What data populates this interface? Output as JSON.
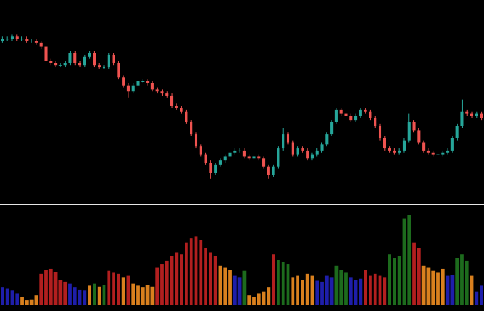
{
  "chart_data": [
    {
      "type": "candlestick",
      "up_color": "#26a69a",
      "down_color": "#ef5350",
      "ylim": [
        0,
        100
      ],
      "open": [
        80,
        81,
        81,
        82,
        81,
        81,
        80,
        80,
        79,
        77,
        70,
        69,
        68,
        68,
        69,
        74,
        69,
        68,
        72,
        74,
        68,
        67,
        67,
        73,
        69,
        62,
        58,
        55,
        58,
        60,
        60,
        59,
        56,
        55,
        54,
        53,
        48,
        47,
        45,
        40,
        34,
        28,
        24,
        20,
        15,
        19,
        21,
        23,
        25,
        26,
        26,
        23,
        22,
        23,
        22,
        18,
        14,
        18,
        27,
        34,
        30,
        24,
        27,
        26,
        22,
        24,
        26,
        29,
        34,
        40,
        46,
        44,
        43,
        41,
        43,
        46,
        45,
        42,
        38,
        32,
        27,
        26,
        25,
        26,
        31,
        40,
        36,
        30,
        26,
        25,
        24,
        24,
        25,
        26,
        32,
        38,
        45,
        44,
        43,
        44
      ],
      "high": [
        82,
        82,
        83,
        83,
        82,
        82,
        81,
        81,
        80,
        78,
        71,
        70,
        69,
        70,
        75,
        75,
        70,
        73,
        75,
        75,
        69,
        68,
        74,
        74,
        70,
        63,
        59,
        59,
        61,
        61,
        61,
        60,
        57,
        56,
        55,
        54,
        49,
        48,
        46,
        41,
        35,
        29,
        25,
        21,
        20,
        22,
        24,
        26,
        27,
        27,
        27,
        24,
        24,
        24,
        23,
        19,
        19,
        28,
        37,
        35,
        31,
        28,
        28,
        27,
        25,
        27,
        30,
        35,
        41,
        47,
        47,
        45,
        44,
        44,
        47,
        47,
        46,
        43,
        39,
        33,
        28,
        27,
        27,
        32,
        44,
        41,
        37,
        31,
        27,
        26,
        25,
        26,
        27,
        33,
        39,
        51,
        46,
        45,
        45,
        45
      ],
      "low": [
        79,
        80,
        80,
        80,
        80,
        79,
        79,
        78,
        76,
        69,
        68,
        67,
        67,
        67,
        68,
        68,
        67,
        67,
        71,
        67,
        66,
        66,
        66,
        68,
        61,
        57,
        52,
        54,
        57,
        59,
        58,
        55,
        54,
        53,
        52,
        47,
        46,
        44,
        39,
        33,
        27,
        23,
        19,
        12,
        14,
        18,
        20,
        22,
        24,
        25,
        22,
        21,
        21,
        21,
        17,
        12,
        13,
        17,
        26,
        29,
        23,
        23,
        25,
        21,
        21,
        23,
        25,
        28,
        33,
        39,
        43,
        42,
        40,
        40,
        42,
        44,
        41,
        37,
        31,
        26,
        25,
        24,
        24,
        25,
        30,
        35,
        29,
        25,
        24,
        23,
        23,
        23,
        24,
        25,
        31,
        37,
        43,
        42,
        42,
        41
      ],
      "close": [
        81,
        81,
        82,
        81,
        81,
        80,
        80,
        79,
        77,
        70,
        69,
        68,
        68,
        69,
        74,
        69,
        68,
        72,
        74,
        68,
        67,
        67,
        73,
        69,
        62,
        58,
        55,
        58,
        60,
        60,
        59,
        56,
        55,
        54,
        53,
        48,
        47,
        45,
        40,
        34,
        28,
        24,
        20,
        15,
        19,
        21,
        23,
        25,
        26,
        26,
        23,
        22,
        23,
        22,
        18,
        14,
        18,
        27,
        34,
        30,
        24,
        27,
        26,
        22,
        24,
        26,
        29,
        34,
        40,
        46,
        44,
        43,
        41,
        43,
        46,
        45,
        42,
        38,
        32,
        27,
        26,
        25,
        26,
        31,
        40,
        36,
        30,
        26,
        25,
        24,
        24,
        25,
        26,
        32,
        38,
        45,
        44,
        43,
        44,
        42
      ]
    },
    {
      "type": "bar",
      "ylim": [
        0,
        100
      ],
      "values": [
        18,
        17,
        15,
        12,
        8,
        5,
        6,
        10,
        32,
        36,
        37,
        34,
        26,
        24,
        22,
        18,
        16,
        15,
        20,
        22,
        19,
        21,
        35,
        33,
        32,
        28,
        30,
        22,
        20,
        18,
        21,
        19,
        38,
        42,
        45,
        50,
        54,
        52,
        64,
        68,
        70,
        66,
        58,
        54,
        50,
        40,
        38,
        36,
        30,
        28,
        35,
        10,
        8,
        12,
        14,
        18,
        52,
        46,
        44,
        42,
        28,
        30,
        26,
        32,
        30,
        25,
        24,
        30,
        28,
        40,
        36,
        33,
        28,
        26,
        27,
        36,
        30,
        32,
        30,
        28,
        52,
        48,
        50,
        88,
        92,
        64,
        58,
        40,
        38,
        35,
        33,
        37,
        30,
        31,
        48,
        52,
        45,
        30,
        14,
        20
      ],
      "colors": [
        "#1e1eaa",
        "#1e1eaa",
        "#1e1eaa",
        "#1e1eaa",
        "#d9801e",
        "#d9801e",
        "#d9801e",
        "#d9801e",
        "#b21f1f",
        "#b21f1f",
        "#b21f1f",
        "#b21f1f",
        "#b21f1f",
        "#b21f1f",
        "#1e1eaa",
        "#1e1eaa",
        "#1e1eaa",
        "#1e1eaa",
        "#d9801e",
        "#1d6b1d",
        "#d9801e",
        "#1d6b1d",
        "#b21f1f",
        "#b21f1f",
        "#b21f1f",
        "#d9801e",
        "#b21f1f",
        "#d9801e",
        "#d9801e",
        "#d9801e",
        "#d9801e",
        "#d9801e",
        "#b21f1f",
        "#b21f1f",
        "#b21f1f",
        "#b21f1f",
        "#b21f1f",
        "#b21f1f",
        "#b21f1f",
        "#b21f1f",
        "#b21f1f",
        "#b21f1f",
        "#b21f1f",
        "#b21f1f",
        "#b21f1f",
        "#d9801e",
        "#d9801e",
        "#d9801e",
        "#1e1eaa",
        "#1e1eaa",
        "#1d6b1d",
        "#d9801e",
        "#d9801e",
        "#d9801e",
        "#d9801e",
        "#d9801e",
        "#b21f1f",
        "#1d6b1d",
        "#1d6b1d",
        "#1d6b1d",
        "#d9801e",
        "#d9801e",
        "#d9801e",
        "#d9801e",
        "#d9801e",
        "#1e1eaa",
        "#1e1eaa",
        "#1e1eaa",
        "#1e1eaa",
        "#1d6b1d",
        "#1d6b1d",
        "#1d6b1d",
        "#1e1eaa",
        "#1e1eaa",
        "#1e1eaa",
        "#b21f1f",
        "#b21f1f",
        "#b21f1f",
        "#b21f1f",
        "#b21f1f",
        "#1d6b1d",
        "#1d6b1d",
        "#1d6b1d",
        "#1d6b1d",
        "#1d6b1d",
        "#b21f1f",
        "#b21f1f",
        "#d9801e",
        "#d9801e",
        "#d9801e",
        "#d9801e",
        "#d9801e",
        "#1e1eaa",
        "#1e1eaa",
        "#1d6b1d",
        "#1d6b1d",
        "#1d6b1d",
        "#d9801e",
        "#1e1eaa",
        "#1e1eaa"
      ]
    }
  ]
}
